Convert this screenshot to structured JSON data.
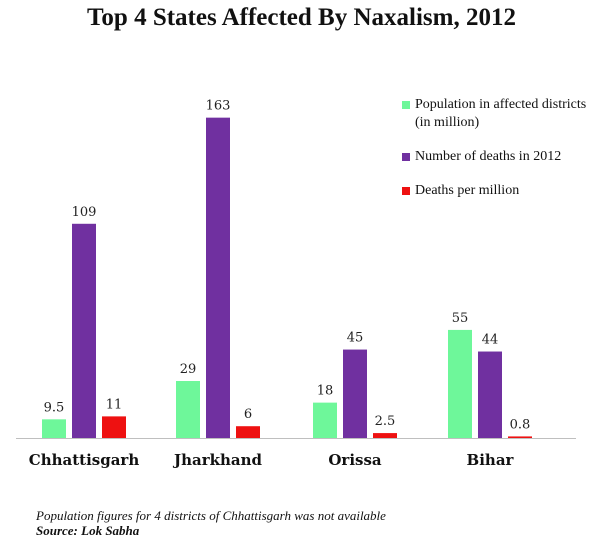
{
  "chart_data": {
    "type": "bar",
    "title": "Top 4 States Affected By Naxalism, 2012",
    "categories": [
      "Chhattisgarh",
      "Jharkhand",
      "Orissa",
      "Bihar"
    ],
    "series": [
      {
        "name": "Population in affected districts (in million)",
        "color": "#6ef79a",
        "values": [
          9.5,
          29,
          18,
          55
        ],
        "labels": [
          "9.5",
          "29",
          "18",
          "55"
        ]
      },
      {
        "name": "Number of deaths in 2012",
        "color": "#7030a0",
        "values": [
          109,
          163,
          45,
          44
        ],
        "labels": [
          "109",
          "163",
          "45",
          "44"
        ]
      },
      {
        "name": "Deaths per million",
        "color": "#ee1111",
        "values": [
          11,
          6,
          2.5,
          0.8
        ],
        "labels": [
          "11",
          "6",
          "2.5",
          "0.8"
        ]
      }
    ],
    "ylim": [
      0,
      173
    ],
    "grid": false,
    "legend": "top-right"
  },
  "footnote": {
    "note": "Population figures for 4 districts of Chhattisgarh was not available",
    "source": "Source: Lok Sabha"
  }
}
